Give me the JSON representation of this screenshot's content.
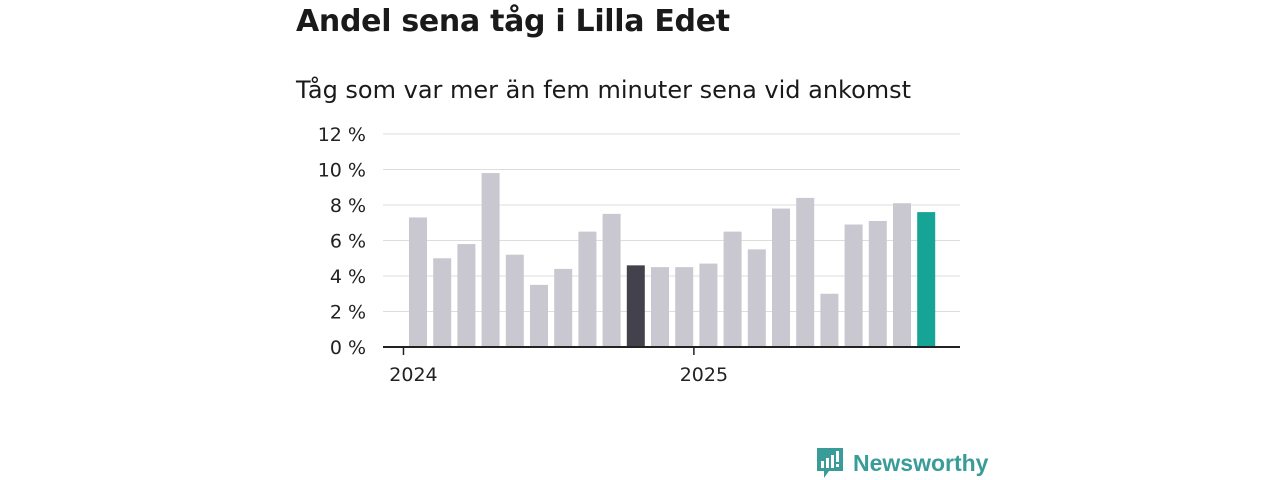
{
  "chart_data": {
    "type": "bar",
    "title": "Andel sena tåg i Lilla Edet",
    "subtitle": "Tåg som var mer än fem minuter sena vid ankomst",
    "values": [
      7.3,
      5.0,
      5.8,
      9.8,
      5.2,
      3.5,
      4.4,
      6.5,
      7.5,
      4.6,
      4.5,
      4.5,
      4.7,
      6.5,
      5.5,
      7.8,
      8.4,
      3.0,
      6.9,
      7.1,
      8.1,
      7.6
    ],
    "highlight": {
      "dark_index": 9,
      "accent_index": 21
    },
    "yticks": [
      "0 %",
      "2 %",
      "4 %",
      "6 %",
      "8 %",
      "10 %",
      "12 %"
    ],
    "ylim": [
      0,
      12
    ],
    "xticks": [
      {
        "label": "2024",
        "position": -0.6
      },
      {
        "label": "2025",
        "position": 11.4
      }
    ],
    "xlabel": "",
    "ylabel": "",
    "grid": true,
    "colors": {
      "bar": "#c9c8d0",
      "dark": "#43414b",
      "accent": "#16a497",
      "grid": "#dddddd",
      "axis": "#222222"
    }
  },
  "brand": {
    "name": "Newsworthy",
    "color": "#3a9c98"
  }
}
